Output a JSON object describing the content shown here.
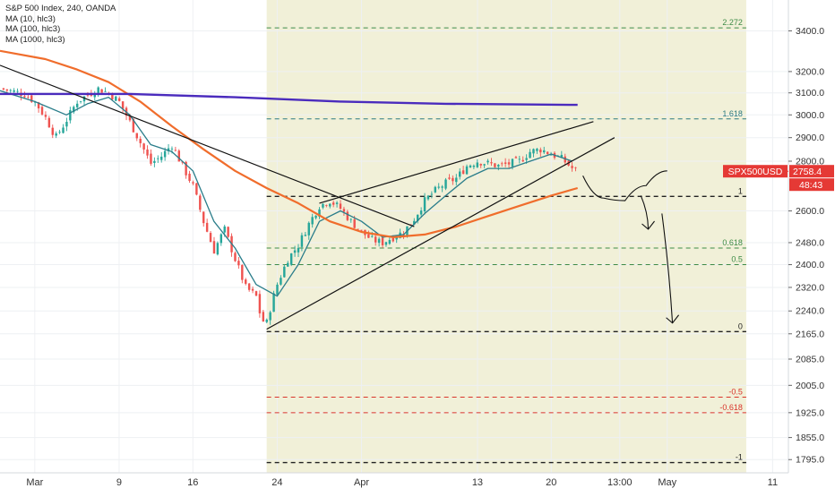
{
  "legend": {
    "title": "S&P 500 Index, 240, OANDA",
    "ma1": "MA (10, hlc3)",
    "ma2": "MA (100, hlc3)",
    "ma3": "MA (1000, hlc3)"
  },
  "symbol_tag": {
    "name": "SPX500USD",
    "price": "2758.4",
    "countdown": "48:43",
    "color": "#e53935"
  },
  "colors": {
    "candle_up": "#26a69a",
    "candle_down": "#ef5350",
    "ma10": "#2a7d8a",
    "ma100": "#f06d2c",
    "ma1000": "#4a2bbd",
    "fib_green": "#3d8b47",
    "fib_red": "#d9342b",
    "fib_zone": "#ecebcb",
    "text": "#333333"
  },
  "chart_data": {
    "type": "candlestick",
    "price_axis": {
      "scale": "log",
      "ylim": [
        1760,
        3560
      ],
      "ticks": [
        "3400.0",
        "3200.0",
        "3100.0",
        "3000.0",
        "2900.0",
        "2800.0",
        "2600.0",
        "2480.0",
        "2400.0",
        "2320.0",
        "2240.0",
        "2165.0",
        "2085.0",
        "2005.0",
        "1925.0",
        "1855.0",
        "1795.0"
      ]
    },
    "time_axis": {
      "ticks": [
        "Mar",
        "9",
        "16",
        "24",
        "Apr",
        "13",
        "20",
        "13:00",
        "May",
        "11"
      ],
      "tick_days": [
        1,
        9,
        16,
        24,
        32,
        43,
        50,
        56.5,
        61,
        71
      ],
      "xlim": [
        -2.3,
        72.5
      ]
    },
    "fib_levels": [
      {
        "label": "2.272",
        "price": 3415,
        "color": "green"
      },
      {
        "label": "1.618",
        "price": 2982,
        "color": "teal"
      },
      {
        "label": "1",
        "price": 2657,
        "color": "black"
      },
      {
        "label": "0.618",
        "price": 2460,
        "color": "green"
      },
      {
        "label": "0.5",
        "price": 2400,
        "color": "green"
      },
      {
        "label": "0",
        "price": 2172,
        "color": "black"
      },
      {
        "label": "-0.5",
        "price": 1970,
        "color": "red"
      },
      {
        "label": "-0.618",
        "price": 1925,
        "color": "red"
      },
      {
        "label": "-1",
        "price": 1787,
        "color": "black"
      }
    ],
    "fib_zone": {
      "start_day": 23,
      "end_day": 68.5
    },
    "close_points": [
      [
        -2.3,
        3120
      ],
      [
        0,
        3095
      ],
      [
        1,
        3060
      ],
      [
        2,
        2990
      ],
      [
        3,
        2900
      ],
      [
        4,
        2975
      ],
      [
        5,
        3060
      ],
      [
        6,
        3090
      ],
      [
        7,
        3120
      ],
      [
        8,
        3100
      ],
      [
        9,
        3060
      ],
      [
        10,
        2970
      ],
      [
        11,
        2880
      ],
      [
        12,
        2790
      ],
      [
        13,
        2820
      ],
      [
        14,
        2870
      ],
      [
        15,
        2780
      ],
      [
        16,
        2700
      ],
      [
        17,
        2560
      ],
      [
        18,
        2450
      ],
      [
        19,
        2530
      ],
      [
        20,
        2420
      ],
      [
        21,
        2320
      ],
      [
        22,
        2290
      ],
      [
        22.5,
        2210
      ],
      [
        23,
        2200
      ],
      [
        23.5,
        2270
      ],
      [
        24,
        2330
      ],
      [
        25,
        2420
      ],
      [
        26,
        2470
      ],
      [
        27,
        2550
      ],
      [
        28,
        2620
      ],
      [
        29,
        2640
      ],
      [
        30,
        2610
      ],
      [
        31,
        2560
      ],
      [
        32,
        2520
      ],
      [
        33,
        2490
      ],
      [
        34,
        2480
      ],
      [
        35,
        2500
      ],
      [
        36,
        2520
      ],
      [
        37,
        2570
      ],
      [
        38,
        2640
      ],
      [
        39,
        2680
      ],
      [
        40,
        2710
      ],
      [
        41,
        2730
      ],
      [
        42,
        2780
      ],
      [
        43,
        2800
      ],
      [
        44,
        2790
      ],
      [
        45,
        2780
      ],
      [
        46,
        2790
      ],
      [
        47,
        2800
      ],
      [
        48,
        2840
      ],
      [
        49,
        2850
      ],
      [
        50,
        2830
      ],
      [
        51,
        2810
      ],
      [
        52,
        2770
      ],
      [
        52.5,
        2758
      ]
    ],
    "ma_series": [
      {
        "name": "MA (10, hlc3)",
        "points": [
          [
            -2.3,
            3110
          ],
          [
            1,
            3060
          ],
          [
            4,
            3000
          ],
          [
            6,
            3050
          ],
          [
            8,
            3080
          ],
          [
            10,
            3000
          ],
          [
            12,
            2870
          ],
          [
            14,
            2840
          ],
          [
            16,
            2760
          ],
          [
            18,
            2560
          ],
          [
            20,
            2460
          ],
          [
            22,
            2330
          ],
          [
            24,
            2290
          ],
          [
            26,
            2400
          ],
          [
            28,
            2560
          ],
          [
            30,
            2600
          ],
          [
            32,
            2560
          ],
          [
            34,
            2500
          ],
          [
            36,
            2510
          ],
          [
            38,
            2590
          ],
          [
            40,
            2660
          ],
          [
            42,
            2730
          ],
          [
            44,
            2770
          ],
          [
            46,
            2770
          ],
          [
            48,
            2800
          ],
          [
            50,
            2830
          ],
          [
            52,
            2800
          ]
        ]
      },
      {
        "name": "MA (100, hlc3)",
        "points": [
          [
            -2.3,
            3300
          ],
          [
            2,
            3260
          ],
          [
            5,
            3210
          ],
          [
            8,
            3150
          ],
          [
            11,
            3060
          ],
          [
            14,
            2950
          ],
          [
            17,
            2850
          ],
          [
            20,
            2760
          ],
          [
            23,
            2690
          ],
          [
            26,
            2630
          ],
          [
            29,
            2560
          ],
          [
            32,
            2520
          ],
          [
            35,
            2500
          ],
          [
            38,
            2510
          ],
          [
            41,
            2540
          ],
          [
            44,
            2580
          ],
          [
            47,
            2620
          ],
          [
            50,
            2660
          ],
          [
            52.5,
            2690
          ]
        ]
      },
      {
        "name": "MA (1000, hlc3)",
        "points": [
          [
            -2.3,
            3095
          ],
          [
            10,
            3095
          ],
          [
            20,
            3080
          ],
          [
            30,
            3060
          ],
          [
            40,
            3050
          ],
          [
            52.5,
            3045
          ]
        ]
      }
    ],
    "trendlines": [
      {
        "from": [
          -2.3,
          3230
        ],
        "to": [
          37,
          2540
        ]
      },
      {
        "from": [
          23,
          2180
        ],
        "to": [
          56,
          2900
        ]
      },
      {
        "from": [
          28,
          2630
        ],
        "to": [
          54,
          2970
        ]
      }
    ],
    "projection_path_price": [
      [
        53,
        2740
      ],
      [
        55,
        2650
      ],
      [
        57,
        2640
      ],
      [
        59,
        2700
      ],
      [
        61,
        2760
      ]
    ],
    "projection_arrows": [
      {
        "from": [
          58.5,
          2660
        ],
        "to": [
          59.2,
          2530
        ]
      },
      {
        "from": [
          60.5,
          2590
        ],
        "to": [
          61.5,
          2200
        ]
      }
    ]
  }
}
